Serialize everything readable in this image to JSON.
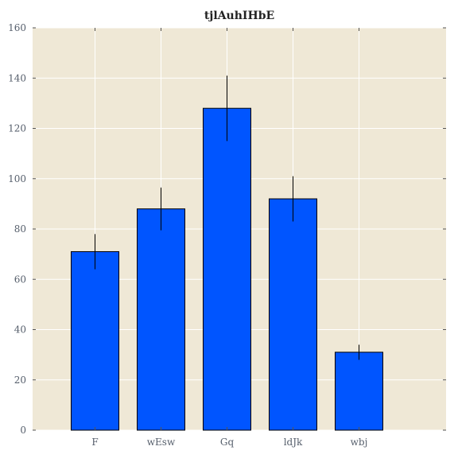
{
  "chart_data": {
    "type": "bar",
    "title": "tjlAuhIHbE",
    "xlabel": "",
    "ylabel": "",
    "categories": [
      "F",
      "wEsw",
      "Gq",
      "ldJk",
      "wbj"
    ],
    "values": [
      71,
      88,
      128,
      92,
      31
    ],
    "errors": [
      7,
      8.5,
      13,
      9,
      3
    ],
    "ylim": [
      0,
      160
    ],
    "yticks": [
      0,
      20,
      40,
      60,
      80,
      100,
      120,
      140,
      160
    ],
    "grid": true,
    "colors": {
      "bar": "#0055ff",
      "plot_background": "#efe8d6",
      "grid": "#ffffff"
    }
  }
}
